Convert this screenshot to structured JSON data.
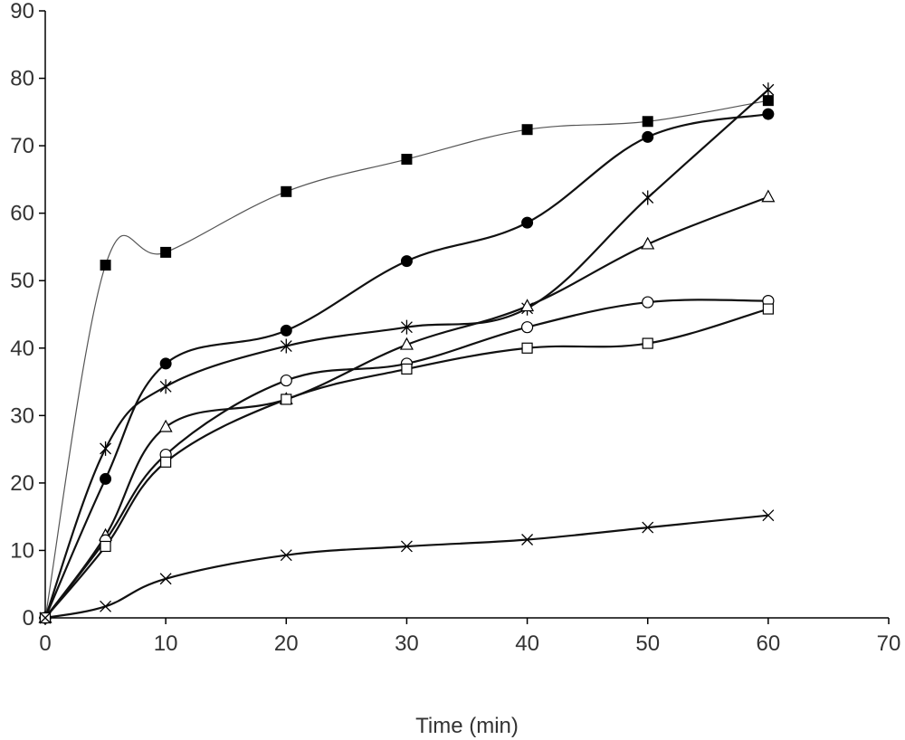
{
  "chart_data": {
    "type": "line",
    "title": "",
    "xlabel": "Time (min)",
    "ylabel": "",
    "xlim": [
      0,
      70
    ],
    "ylim": [
      0,
      90
    ],
    "xticks": [
      0,
      10,
      20,
      30,
      40,
      50,
      60,
      70
    ],
    "yticks": [
      0,
      10,
      20,
      30,
      40,
      50,
      60,
      70,
      80,
      90
    ],
    "grid": false,
    "x": [
      0,
      5,
      10,
      20,
      30,
      40,
      50,
      60
    ],
    "series": [
      {
        "marker": "filled-square",
        "line": "thin",
        "values": [
          0,
          52.3,
          54.2,
          63.2,
          68.0,
          72.4,
          73.6,
          76.7
        ]
      },
      {
        "marker": "filled-circle",
        "line": "thick",
        "values": [
          0,
          20.6,
          37.7,
          42.6,
          52.9,
          58.6,
          71.3,
          74.7
        ]
      },
      {
        "marker": "asterisk",
        "line": "thick",
        "values": [
          0,
          25.1,
          34.3,
          40.3,
          43.1,
          45.9,
          62.3,
          78.3
        ]
      },
      {
        "marker": "open-triangle",
        "line": "thick",
        "values": [
          0,
          12.2,
          28.3,
          32.4,
          40.5,
          46.2,
          55.4,
          62.4
        ]
      },
      {
        "marker": "open-circle",
        "line": "thick",
        "values": [
          0,
          11.5,
          24.2,
          35.2,
          37.7,
          43.1,
          46.8,
          47.0
        ]
      },
      {
        "marker": "open-square",
        "line": "thick",
        "values": [
          0,
          10.6,
          23.1,
          32.4,
          36.9,
          40.0,
          40.7,
          45.8
        ]
      },
      {
        "marker": "x-cross",
        "line": "thick",
        "values": [
          0,
          1.7,
          5.8,
          9.3,
          10.6,
          11.6,
          13.4,
          15.2
        ]
      }
    ]
  }
}
